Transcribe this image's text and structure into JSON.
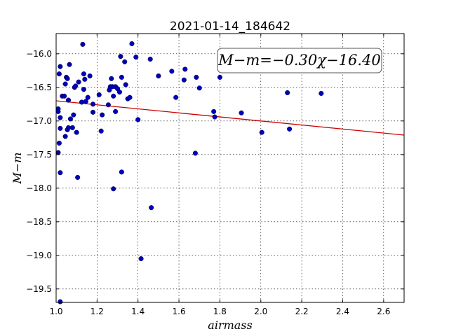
{
  "chart_data": {
    "type": "scatter",
    "title": "2021-01-14_184642",
    "xlabel": "airmass",
    "ylabel": "M−m",
    "xlim": [
      1.0,
      2.7
    ],
    "ylim": [
      -19.7,
      -15.7
    ],
    "y_inverted": true,
    "grid": true,
    "x_ticks": [
      1.0,
      1.2,
      1.4,
      1.6,
      1.8,
      2.0,
      2.2,
      2.4,
      2.6
    ],
    "x_tick_labels": [
      "1.0",
      "1.2",
      "1.4",
      "1.6",
      "1.8",
      "2.0",
      "2.2",
      "2.4",
      "2.6"
    ],
    "y_ticks": [
      -16.0,
      -16.5,
      -17.0,
      -17.5,
      -18.0,
      -18.5,
      -19.0,
      -19.5
    ],
    "y_tick_labels": [
      "−16.0",
      "−16.5",
      "−17.0",
      "−17.5",
      "−18.0",
      "−18.5",
      "−19.0",
      "−19.5"
    ],
    "annotation": "M−m=−0.30χ−16.40",
    "fit": {
      "slope": -0.3,
      "intercept": -16.4,
      "color": "#cc0000"
    },
    "point_color": "#0000bb",
    "points": [
      [
        1.01,
        -16.82
      ],
      [
        1.01,
        -16.86
      ],
      [
        1.01,
        -17.47
      ],
      [
        1.015,
        -16.3
      ],
      [
        1.015,
        -17.33
      ],
      [
        1.02,
        -16.19
      ],
      [
        1.02,
        -16.95
      ],
      [
        1.02,
        -17.11
      ],
      [
        1.02,
        -17.77
      ],
      [
        1.02,
        -19.69
      ],
      [
        1.03,
        -16.63
      ],
      [
        1.04,
        -16.63
      ],
      [
        1.045,
        -16.45
      ],
      [
        1.045,
        -17.23
      ],
      [
        1.05,
        -16.35
      ],
      [
        1.055,
        -16.37
      ],
      [
        1.055,
        -17.13
      ],
      [
        1.06,
        -16.69
      ],
      [
        1.06,
        -17.1
      ],
      [
        1.065,
        -16.16
      ],
      [
        1.07,
        -16.97
      ],
      [
        1.08,
        -17.1
      ],
      [
        1.085,
        -16.91
      ],
      [
        1.09,
        -16.5
      ],
      [
        1.095,
        -16.48
      ],
      [
        1.1,
        -17.17
      ],
      [
        1.105,
        -17.84
      ],
      [
        1.11,
        -16.42
      ],
      [
        1.125,
        -16.72
      ],
      [
        1.13,
        -15.86
      ],
      [
        1.135,
        -16.3
      ],
      [
        1.135,
        -16.53
      ],
      [
        1.14,
        -16.38
      ],
      [
        1.145,
        -16.71
      ],
      [
        1.155,
        -16.65
      ],
      [
        1.165,
        -16.33
      ],
      [
        1.18,
        -16.75
      ],
      [
        1.18,
        -16.87
      ],
      [
        1.21,
        -16.61
      ],
      [
        1.22,
        -17.15
      ],
      [
        1.225,
        -16.91
      ],
      [
        1.255,
        -16.76
      ],
      [
        1.26,
        -16.54
      ],
      [
        1.265,
        -16.49
      ],
      [
        1.27,
        -16.37
      ],
      [
        1.275,
        -16.49
      ],
      [
        1.28,
        -18.01
      ],
      [
        1.28,
        -16.63
      ],
      [
        1.29,
        -16.49
      ],
      [
        1.29,
        -16.86
      ],
      [
        1.3,
        -16.52
      ],
      [
        1.31,
        -16.57
      ],
      [
        1.315,
        -16.04
      ],
      [
        1.32,
        -16.35
      ],
      [
        1.32,
        -17.76
      ],
      [
        1.335,
        -16.12
      ],
      [
        1.34,
        -16.46
      ],
      [
        1.35,
        -16.67
      ],
      [
        1.36,
        -16.65
      ],
      [
        1.37,
        -15.85
      ],
      [
        1.39,
        -16.05
      ],
      [
        1.4,
        -16.98
      ],
      [
        1.415,
        -19.05
      ],
      [
        1.46,
        -16.08
      ],
      [
        1.465,
        -18.29
      ],
      [
        1.5,
        -16.33
      ],
      [
        1.565,
        -16.26
      ],
      [
        1.585,
        -16.65
      ],
      [
        1.625,
        -16.39
      ],
      [
        1.63,
        -16.23
      ],
      [
        1.68,
        -17.48
      ],
      [
        1.685,
        -16.35
      ],
      [
        1.7,
        -16.51
      ],
      [
        1.77,
        -16.86
      ],
      [
        1.775,
        -16.94
      ],
      [
        1.8,
        -16.35
      ],
      [
        1.905,
        -16.88
      ],
      [
        2.005,
        -17.17
      ],
      [
        2.13,
        -16.58
      ],
      [
        2.14,
        -17.12
      ],
      [
        2.295,
        -16.59
      ]
    ]
  }
}
